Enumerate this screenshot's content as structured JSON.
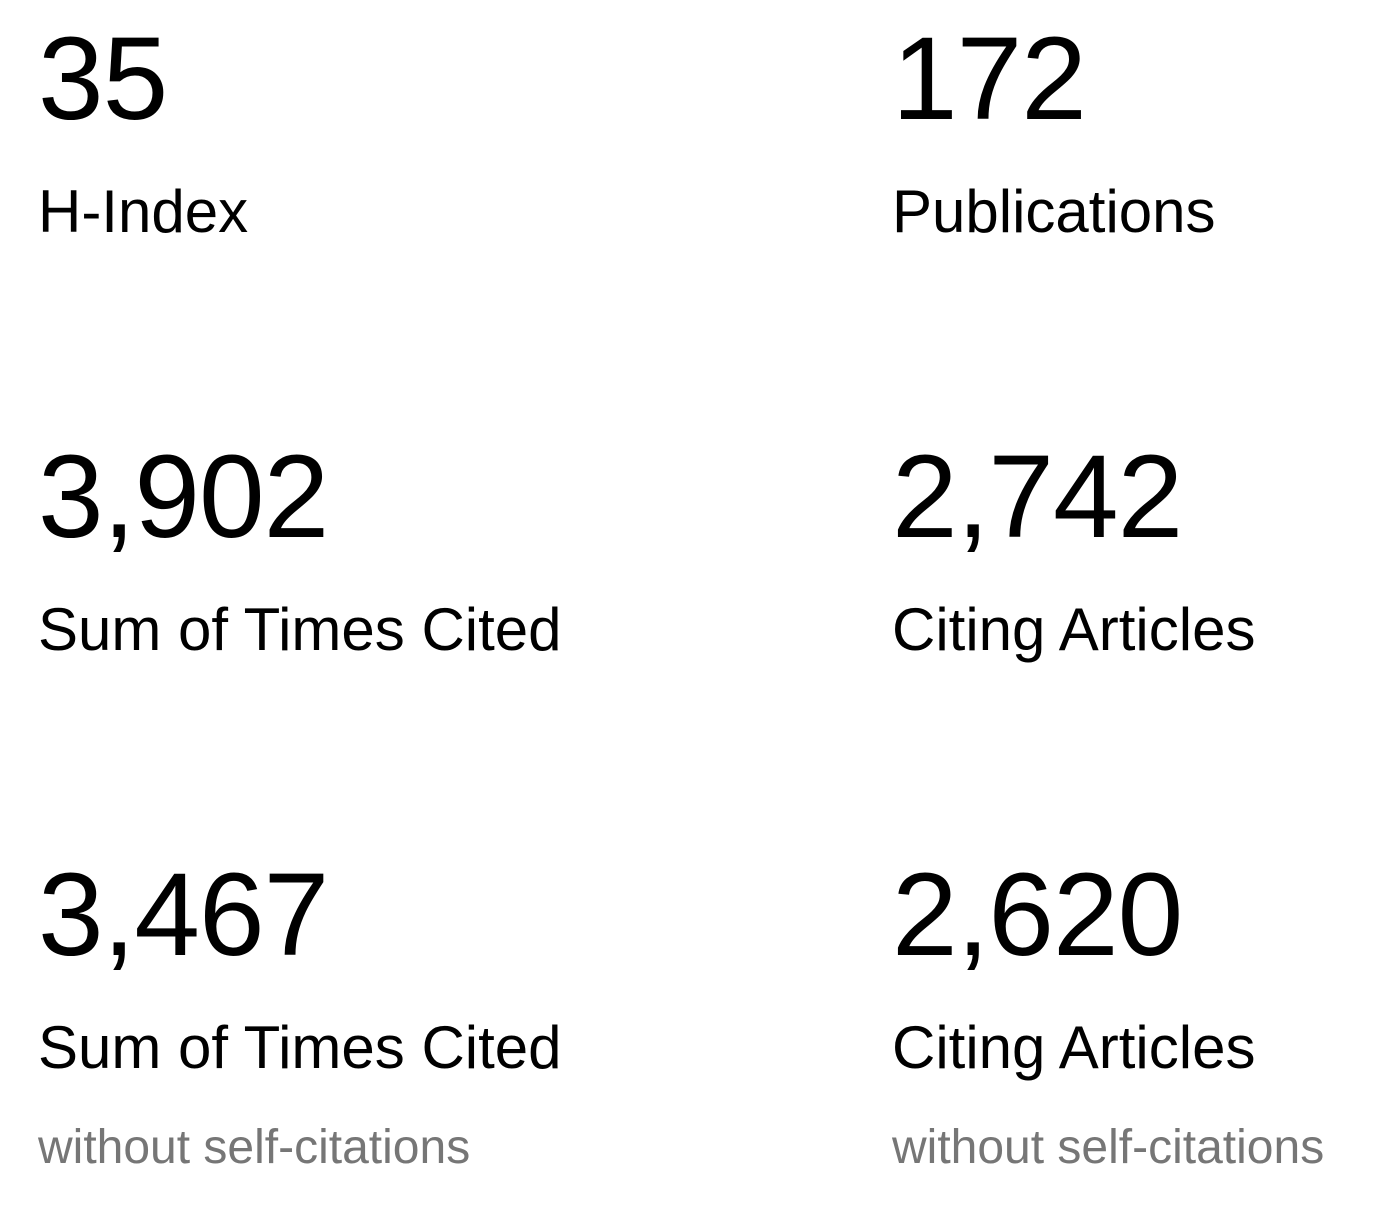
{
  "metrics": [
    {
      "value": "35",
      "label": "H-Index",
      "note": ""
    },
    {
      "value": "172",
      "label": "Publications",
      "note": ""
    },
    {
      "value": "3,902",
      "label": "Sum of Times Cited",
      "note": ""
    },
    {
      "value": "2,742",
      "label": "Citing Articles",
      "note": ""
    },
    {
      "value": "3,467",
      "label": "Sum of Times Cited",
      "note": "without self-citations"
    },
    {
      "value": "2,620",
      "label": "Citing Articles",
      "note": "without self-citations"
    }
  ],
  "colors": {
    "value_text": "#000000",
    "label_text": "#000000",
    "note_text": "#767676"
  }
}
